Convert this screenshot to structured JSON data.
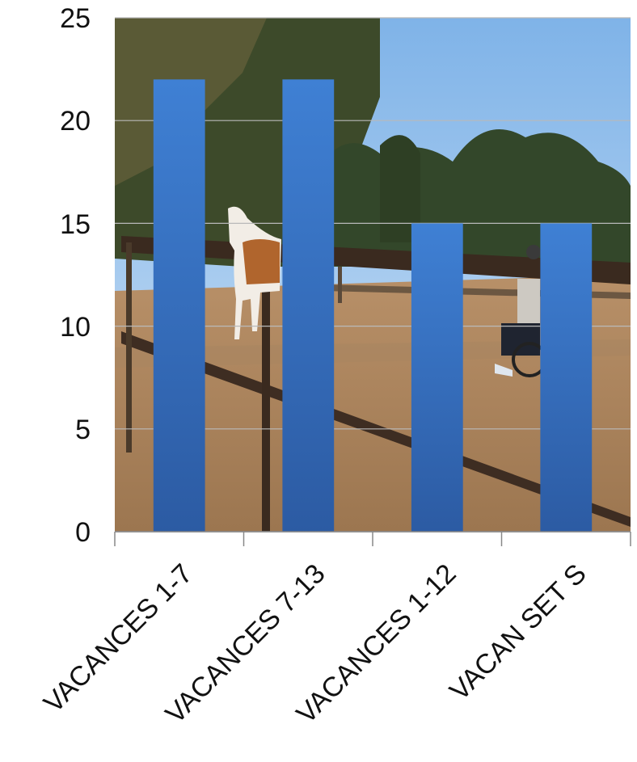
{
  "chart_data": {
    "type": "bar",
    "categories": [
      "VACANCES  1-7",
      "VACANCES 7-13",
      "VACANCES 1-12",
      "VACAN SET S"
    ],
    "values": [
      22,
      22,
      15,
      15
    ],
    "y_ticks": [
      "0",
      "5",
      "10",
      "15",
      "20",
      "25"
    ],
    "ylim": [
      0,
      25
    ],
    "grid": true,
    "legend": "none",
    "background": "photo of a horse riding arena with a horse and a person in a wheelchair",
    "colors": {
      "bar_top": "#3e7fd2",
      "bar_bottom": "#2f5ea6",
      "grid": "#b9b9b9",
      "axis": "#888888"
    }
  }
}
